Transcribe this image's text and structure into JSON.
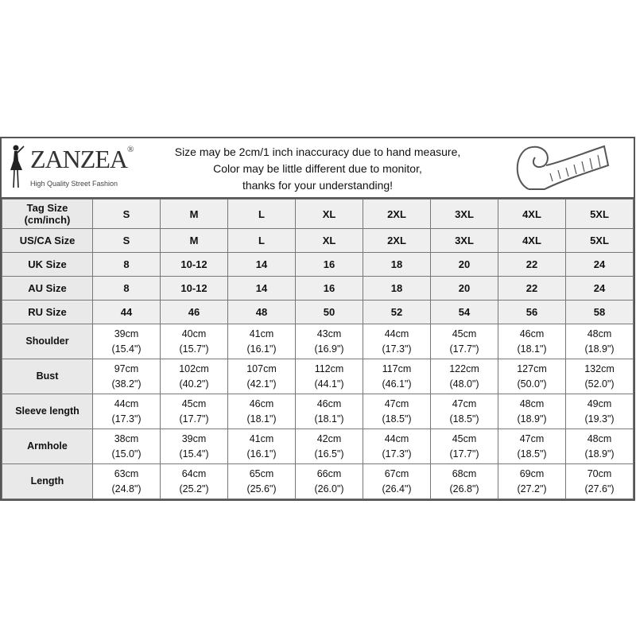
{
  "header": {
    "brand": "ZANZEA",
    "trademark": "®",
    "tagline": "High Quality Street Fashion",
    "notice": [
      "Size may be 2cm/1 inch inaccuracy due to hand measure,",
      "Color may be little different due to monitor,",
      "thanks for your understanding!"
    ],
    "icons": [
      "fashion-figure-icon",
      "measuring-tape-icon"
    ]
  },
  "table": {
    "size_rows": [
      {
        "label": "Tag Size (cm/inch)",
        "values": [
          "S",
          "M",
          "L",
          "XL",
          "2XL",
          "3XL",
          "4XL",
          "5XL"
        ]
      },
      {
        "label": "US/CA Size",
        "values": [
          "S",
          "M",
          "L",
          "XL",
          "2XL",
          "3XL",
          "4XL",
          "5XL"
        ]
      },
      {
        "label": "UK Size",
        "values": [
          "8",
          "10-12",
          "14",
          "16",
          "18",
          "20",
          "22",
          "24"
        ]
      },
      {
        "label": "AU Size",
        "values": [
          "8",
          "10-12",
          "14",
          "16",
          "18",
          "20",
          "22",
          "24"
        ]
      },
      {
        "label": "RU Size",
        "values": [
          "44",
          "46",
          "48",
          "50",
          "52",
          "54",
          "56",
          "58"
        ]
      }
    ],
    "measure_rows": [
      {
        "label": "Shoulder",
        "cm": [
          "39cm",
          "40cm",
          "41cm",
          "43cm",
          "44cm",
          "45cm",
          "46cm",
          "48cm"
        ],
        "inch": [
          "(15.4\")",
          "(15.7\")",
          "(16.1\")",
          "(16.9\")",
          "(17.3\")",
          "(17.7\")",
          "(18.1\")",
          "(18.9\")"
        ]
      },
      {
        "label": "Bust",
        "cm": [
          "97cm",
          "102cm",
          "107cm",
          "112cm",
          "117cm",
          "122cm",
          "127cm",
          "132cm"
        ],
        "inch": [
          "(38.2\")",
          "(40.2\")",
          "(42.1\")",
          "(44.1\")",
          "(46.1\")",
          "(48.0\")",
          "(50.0\")",
          "(52.0\")"
        ]
      },
      {
        "label": "Sleeve length",
        "cm": [
          "44cm",
          "45cm",
          "46cm",
          "46cm",
          "47cm",
          "47cm",
          "48cm",
          "49cm"
        ],
        "inch": [
          "(17.3\")",
          "(17.7\")",
          "(18.1\")",
          "(18.1\")",
          "(18.5\")",
          "(18.5\")",
          "(18.9\")",
          "(19.3\")"
        ]
      },
      {
        "label": "Armhole",
        "cm": [
          "38cm",
          "39cm",
          "41cm",
          "42cm",
          "44cm",
          "45cm",
          "47cm",
          "48cm"
        ],
        "inch": [
          "(15.0\")",
          "(15.4\")",
          "(16.1\")",
          "(16.5\")",
          "(17.3\")",
          "(17.7\")",
          "(18.5\")",
          "(18.9\")"
        ]
      },
      {
        "label": "Length",
        "cm": [
          "63cm",
          "64cm",
          "65cm",
          "66cm",
          "67cm",
          "68cm",
          "69cm",
          "70cm"
        ],
        "inch": [
          "(24.8\")",
          "(25.2\")",
          "(25.6\")",
          "(26.0\")",
          "(26.4\")",
          "(26.8\")",
          "(27.2\")",
          "(27.6\")"
        ]
      }
    ]
  }
}
